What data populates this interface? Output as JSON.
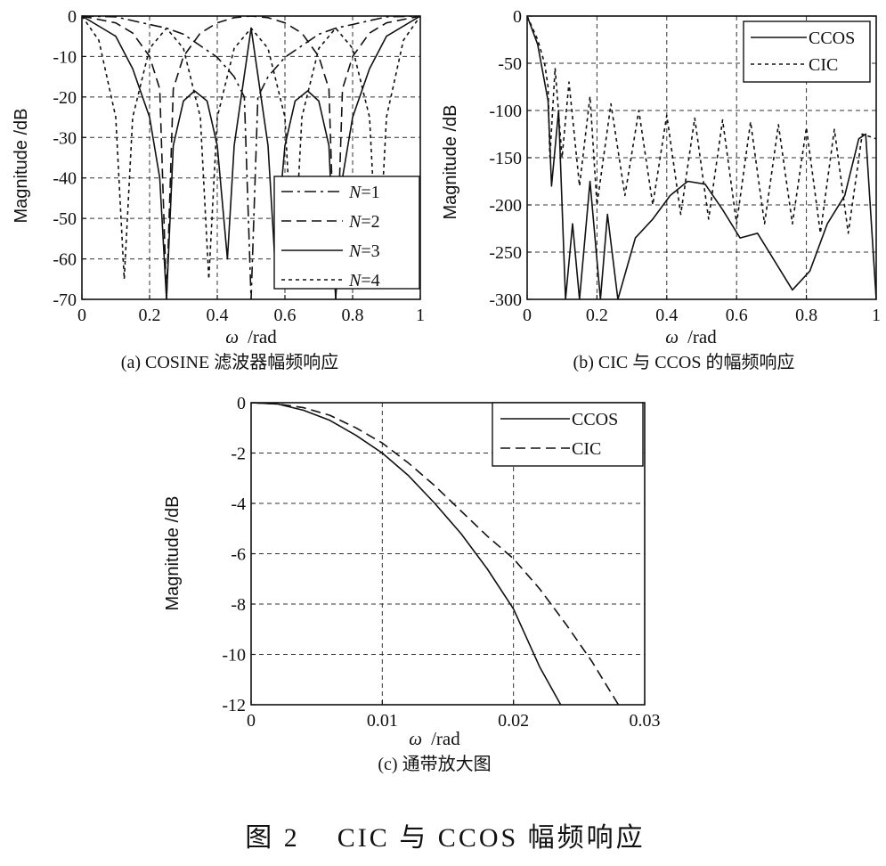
{
  "figure_caption": "图 2    CIC 与 CCOS 幅频响应",
  "chart_data": [
    {
      "id": "a",
      "type": "line",
      "caption": "(a) COSINE 滤波器幅频响应",
      "xlabel_symbol": "ω",
      "xlabel_unit": "/rad",
      "ylabel": "Magnitude /dB",
      "xlim": [
        0,
        1
      ],
      "ylim": [
        -70,
        0
      ],
      "xticks": [
        0,
        0.2,
        0.4,
        0.6,
        0.8,
        1
      ],
      "xtick_labels": [
        "0",
        "0.2",
        "0.4",
        "0.6",
        "0.8",
        "1"
      ],
      "yticks": [
        0,
        -10,
        -20,
        -30,
        -40,
        -50,
        -60,
        -70
      ],
      "ytick_labels": [
        "0",
        "-10",
        "-20",
        "-30",
        "-40",
        "-50",
        "-60",
        "-70"
      ],
      "grid": true,
      "legend_position": "bottom-right",
      "series": [
        {
          "name_prefix": "N",
          "name_suffix": "=1",
          "order": 1,
          "style": "dashdot",
          "x": [
            0,
            0.1,
            0.2,
            0.25,
            0.3,
            0.4,
            0.45,
            0.48,
            0.5,
            0.52,
            0.55,
            0.6,
            0.7,
            0.75,
            0.8,
            0.9,
            1
          ],
          "values": [
            0,
            -0.2,
            -2.1,
            -3.0,
            -4.5,
            -10.2,
            -15,
            -20,
            -70,
            -20,
            -15,
            -10.2,
            -4.5,
            -3.0,
            -2.1,
            -0.2,
            0
          ]
        },
        {
          "name_prefix": "N",
          "name_suffix": "=2",
          "order": 2,
          "style": "dashed",
          "x": [
            0,
            0.1,
            0.15,
            0.2,
            0.23,
            0.25,
            0.27,
            0.3,
            0.35,
            0.4,
            0.45,
            0.5,
            0.55,
            0.6,
            0.65,
            0.7,
            0.73,
            0.75,
            0.77,
            0.8,
            0.85,
            0.9,
            1
          ],
          "values": [
            0,
            -1.7,
            -4.2,
            -10,
            -18,
            -70,
            -18,
            -10,
            -4.2,
            -1.7,
            -0.4,
            0,
            -0.4,
            -1.7,
            -4.2,
            -10,
            -18,
            -70,
            -18,
            -10,
            -4.2,
            -1.7,
            0
          ]
        },
        {
          "name_prefix": "N",
          "name_suffix": "=3",
          "order": 3,
          "style": "solid",
          "x": [
            0,
            0.1,
            0.15,
            0.2,
            0.23,
            0.25,
            0.27,
            0.3,
            0.333,
            0.37,
            0.4,
            0.43,
            0.45,
            0.5,
            0.55,
            0.57,
            0.6,
            0.63,
            0.667,
            0.7,
            0.73,
            0.75,
            0.77,
            0.8,
            0.85,
            0.9,
            1
          ],
          "values": [
            0,
            -5,
            -13,
            -25,
            -40,
            -70,
            -32,
            -21,
            -18.5,
            -21,
            -32,
            -60,
            -32,
            -3,
            -32,
            -60,
            -32,
            -21,
            -18.5,
            -21,
            -32,
            -70,
            -40,
            -25,
            -13,
            -5,
            0
          ]
        },
        {
          "name_prefix": "N",
          "name_suffix": "=4",
          "order": 4,
          "style": "dotted",
          "x": [
            0,
            0.05,
            0.1,
            0.125,
            0.15,
            0.2,
            0.25,
            0.3,
            0.35,
            0.375,
            0.4,
            0.45,
            0.5,
            0.55,
            0.6,
            0.625,
            0.65,
            0.7,
            0.75,
            0.8,
            0.85,
            0.875,
            0.9,
            0.95,
            1
          ],
          "values": [
            0,
            -6,
            -25,
            -65,
            -25,
            -8,
            -3,
            -8,
            -25,
            -65,
            -25,
            -8,
            -3,
            -8,
            -25,
            -65,
            -25,
            -8,
            -3,
            -8,
            -25,
            -65,
            -25,
            -6,
            0
          ]
        }
      ]
    },
    {
      "id": "b",
      "type": "line",
      "caption": "(b) CIC 与 CCOS 的幅频响应",
      "xlabel_symbol": "ω",
      "xlabel_unit": "/rad",
      "ylabel": "Magnitude /dB",
      "xlim": [
        0,
        1
      ],
      "ylim": [
        -300,
        0
      ],
      "xticks": [
        0,
        0.2,
        0.4,
        0.6,
        0.8,
        1
      ],
      "xtick_labels": [
        "0",
        "0.2",
        "0.4",
        "0.6",
        "0.8",
        "1"
      ],
      "yticks": [
        0,
        -50,
        -100,
        -150,
        -200,
        -250,
        -300
      ],
      "ytick_labels": [
        "0",
        "-50",
        "-100",
        "-150",
        "-200",
        "-250",
        "-300"
      ],
      "grid": true,
      "legend_position": "top-right",
      "series": [
        {
          "name": "CCOS",
          "style": "solid",
          "x": [
            0,
            0.03,
            0.06,
            0.07,
            0.09,
            0.11,
            0.13,
            0.15,
            0.18,
            0.21,
            0.23,
            0.26,
            0.31,
            0.36,
            0.41,
            0.46,
            0.51,
            0.56,
            0.61,
            0.66,
            0.71,
            0.76,
            0.81,
            0.86,
            0.91,
            0.95,
            0.97,
            1
          ],
          "values": [
            0,
            -30,
            -90,
            -180,
            -100,
            -300,
            -220,
            -300,
            -175,
            -300,
            -210,
            -300,
            -235,
            -215,
            -190,
            -175,
            -178,
            -205,
            -235,
            -230,
            -260,
            -290,
            -270,
            -220,
            -190,
            -130,
            -125,
            -300
          ]
        },
        {
          "name": "CIC",
          "style": "dotted",
          "x": [
            0,
            0.03,
            0.05,
            0.06,
            0.065,
            0.08,
            0.1,
            0.12,
            0.15,
            0.18,
            0.2,
            0.24,
            0.28,
            0.32,
            0.36,
            0.4,
            0.44,
            0.48,
            0.52,
            0.56,
            0.6,
            0.64,
            0.68,
            0.72,
            0.76,
            0.8,
            0.84,
            0.88,
            0.92,
            0.96,
            1
          ],
          "values": [
            0,
            -25,
            -50,
            -75,
            -150,
            -55,
            -150,
            -70,
            -180,
            -85,
            -200,
            -93,
            -190,
            -100,
            -200,
            -105,
            -210,
            -108,
            -215,
            -110,
            -220,
            -112,
            -220,
            -115,
            -220,
            -118,
            -230,
            -120,
            -230,
            -125,
            -130
          ]
        }
      ]
    },
    {
      "id": "c",
      "type": "line",
      "caption": "(c) 通带放大图",
      "xlabel_symbol": "ω",
      "xlabel_unit": "/rad",
      "ylabel": "Magnitude /dB",
      "xlim": [
        0,
        0.03
      ],
      "ylim": [
        -12,
        0
      ],
      "xticks": [
        0,
        0.01,
        0.02,
        0.03
      ],
      "xtick_labels": [
        "0",
        "0.01",
        "0.02",
        "0.03"
      ],
      "yticks": [
        0,
        -2,
        -4,
        -6,
        -8,
        -10,
        -12
      ],
      "ytick_labels": [
        "0",
        "-2",
        "-4",
        "-6",
        "-8",
        "-10",
        "-12"
      ],
      "grid": true,
      "legend_position": "top-right",
      "series": [
        {
          "name": "CCOS",
          "style": "solid",
          "x": [
            0,
            0.002,
            0.004,
            0.006,
            0.008,
            0.01,
            0.012,
            0.014,
            0.016,
            0.018,
            0.02,
            0.022,
            0.0236
          ],
          "values": [
            0,
            -0.05,
            -0.3,
            -0.7,
            -1.3,
            -2.0,
            -2.9,
            -4.0,
            -5.2,
            -6.6,
            -8.2,
            -10.5,
            -12
          ]
        },
        {
          "name": "CIC",
          "style": "dashed",
          "x": [
            0,
            0.002,
            0.004,
            0.006,
            0.008,
            0.01,
            0.012,
            0.014,
            0.016,
            0.018,
            0.02,
            0.022,
            0.024,
            0.026,
            0.028
          ],
          "values": [
            0,
            -0.05,
            -0.2,
            -0.5,
            -1.0,
            -1.6,
            -2.4,
            -3.3,
            -4.3,
            -5.3,
            -6.2,
            -7.4,
            -8.8,
            -10.3,
            -12
          ]
        }
      ]
    }
  ]
}
